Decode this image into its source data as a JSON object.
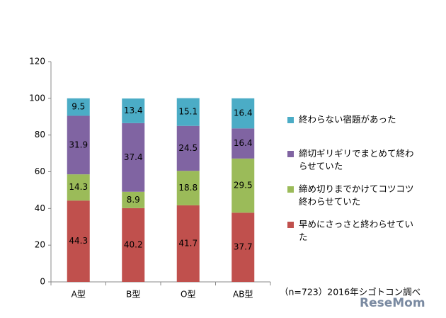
{
  "chart_data": {
    "type": "stacked-bar",
    "categories": [
      "A型",
      "B型",
      "O型",
      "AB型"
    ],
    "series": [
      {
        "name": "早めにさっさと終わらせていた",
        "color": "#c0504d",
        "values": [
          44.3,
          40.2,
          41.7,
          37.7
        ]
      },
      {
        "name": "締め切りまでかけてコツコツ終わらせていた",
        "color": "#9bbb59",
        "values": [
          14.3,
          8.9,
          18.8,
          29.5
        ]
      },
      {
        "name": "締切ギリギリでまとめて終わらせていた",
        "color": "#8064a2",
        "values": [
          31.9,
          37.4,
          24.5,
          16.4
        ]
      },
      {
        "name": "終わらない宿題があった",
        "color": "#4bacc6",
        "values": [
          9.5,
          13.4,
          15.1,
          16.4
        ]
      }
    ],
    "ylim": [
      0,
      120
    ],
    "yticks": [
      0,
      20,
      40,
      60,
      80,
      100,
      120
    ],
    "grid": false,
    "legend": "right",
    "source": "（n=723）2016年シゴトコン調べ",
    "watermark": "ReseMom"
  }
}
